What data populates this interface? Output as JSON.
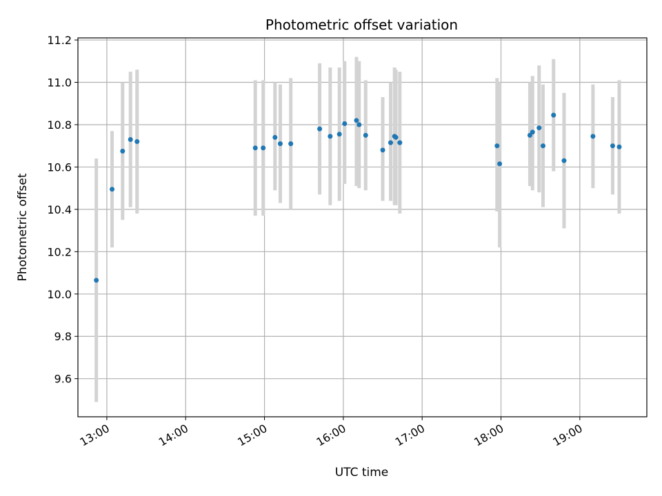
{
  "chart_data": {
    "type": "scatter",
    "title": "Photometric offset variation",
    "xlabel": "UTC time",
    "ylabel": "Photometric offset",
    "x_axis": "time",
    "xlim": [
      "12:38",
      "19:51"
    ],
    "ylim": [
      9.42,
      11.21
    ],
    "xticks": [
      "13:00",
      "14:00",
      "15:00",
      "16:00",
      "17:00",
      "18:00",
      "19:00"
    ],
    "yticks": [
      9.6,
      9.8,
      10.0,
      10.2,
      10.4,
      10.6,
      10.8,
      11.0,
      11.2
    ],
    "ytick_labels": [
      "9.6",
      "9.8",
      "10.0",
      "10.2",
      "10.4",
      "10.6",
      "10.8",
      "11.0",
      "11.2"
    ],
    "grid": true,
    "marker_color": "#1f77b4",
    "errorbar_color": "#d3d3d3",
    "points": [
      {
        "t": "12:52",
        "y": 10.065,
        "low": 9.49,
        "high": 10.64
      },
      {
        "t": "13:04",
        "y": 10.495,
        "low": 10.22,
        "high": 10.77
      },
      {
        "t": "13:12",
        "y": 10.675,
        "low": 10.35,
        "high": 11.0
      },
      {
        "t": "13:18",
        "y": 10.73,
        "low": 10.41,
        "high": 11.05
      },
      {
        "t": "13:23",
        "y": 10.72,
        "low": 10.38,
        "high": 11.06
      },
      {
        "t": "14:53",
        "y": 10.69,
        "low": 10.37,
        "high": 11.01
      },
      {
        "t": "14:59",
        "y": 10.69,
        "low": 10.37,
        "high": 11.01
      },
      {
        "t": "15:08",
        "y": 10.74,
        "low": 10.49,
        "high": 11.0
      },
      {
        "t": "15:12",
        "y": 10.71,
        "low": 10.43,
        "high": 10.99
      },
      {
        "t": "15:20",
        "y": 10.71,
        "low": 10.4,
        "high": 11.02
      },
      {
        "t": "15:42",
        "y": 10.78,
        "low": 10.47,
        "high": 11.09
      },
      {
        "t": "15:50",
        "y": 10.745,
        "low": 10.42,
        "high": 11.07
      },
      {
        "t": "15:57",
        "y": 10.755,
        "low": 10.44,
        "high": 11.07
      },
      {
        "t": "16:01",
        "y": 10.805,
        "low": 10.52,
        "high": 11.1
      },
      {
        "t": "16:10",
        "y": 10.82,
        "low": 10.51,
        "high": 11.12
      },
      {
        "t": "16:12",
        "y": 10.8,
        "low": 10.5,
        "high": 11.1
      },
      {
        "t": "16:17",
        "y": 10.75,
        "low": 10.49,
        "high": 11.01
      },
      {
        "t": "16:30",
        "y": 10.68,
        "low": 10.44,
        "high": 10.93
      },
      {
        "t": "16:36",
        "y": 10.715,
        "low": 10.44,
        "high": 11.0
      },
      {
        "t": "16:39",
        "y": 10.745,
        "low": 10.42,
        "high": 11.07
      },
      {
        "t": "16:40",
        "y": 10.74,
        "low": 10.42,
        "high": 11.06
      },
      {
        "t": "16:43",
        "y": 10.715,
        "low": 10.38,
        "high": 11.05
      },
      {
        "t": "17:57",
        "y": 10.7,
        "low": 10.39,
        "high": 11.02
      },
      {
        "t": "17:59",
        "y": 10.615,
        "low": 10.22,
        "high": 11.0
      },
      {
        "t": "18:22",
        "y": 10.75,
        "low": 10.51,
        "high": 11.0
      },
      {
        "t": "18:24",
        "y": 10.765,
        "low": 10.49,
        "high": 11.03
      },
      {
        "t": "18:29",
        "y": 10.785,
        "low": 10.48,
        "high": 11.08
      },
      {
        "t": "18:32",
        "y": 10.7,
        "low": 10.41,
        "high": 10.99
      },
      {
        "t": "18:40",
        "y": 10.845,
        "low": 10.58,
        "high": 11.11
      },
      {
        "t": "18:48",
        "y": 10.63,
        "low": 10.31,
        "high": 10.95
      },
      {
        "t": "19:10",
        "y": 10.745,
        "low": 10.5,
        "high": 10.99
      },
      {
        "t": "19:25",
        "y": 10.7,
        "low": 10.47,
        "high": 10.93
      },
      {
        "t": "19:30",
        "y": 10.695,
        "low": 10.38,
        "high": 11.01
      }
    ]
  }
}
